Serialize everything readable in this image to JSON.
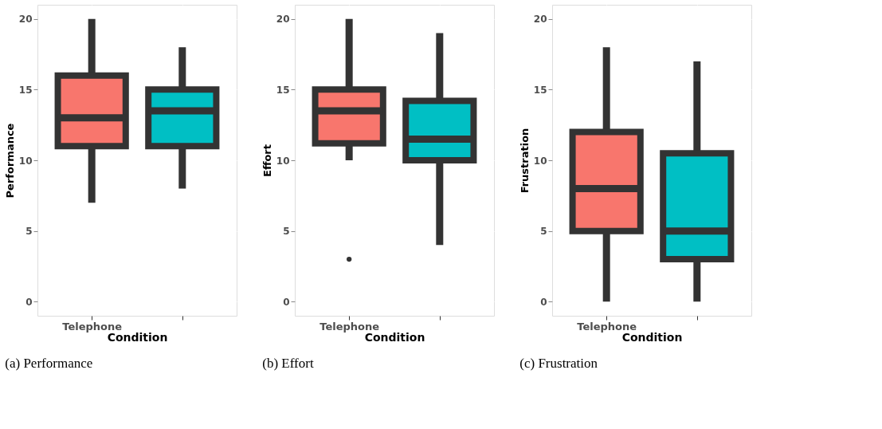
{
  "chart_data": [
    {
      "type": "box",
      "title": "(a) Performance",
      "xlabel": "Condition",
      "ylabel": "Performance",
      "categories": [
        "Telephone",
        null
      ],
      "colors": [
        "#f8766d",
        "#00bfc4"
      ],
      "boxes": [
        {
          "low": 7,
          "q1": 11,
          "median": 13,
          "q3": 16,
          "high": 20
        },
        {
          "low": 8,
          "q1": 11,
          "median": 13.5,
          "q3": 15,
          "high": 18
        }
      ],
      "ylim": [
        -1,
        21
      ],
      "yticks": [
        0,
        5,
        10,
        15,
        20
      ],
      "grid": true
    },
    {
      "type": "box",
      "title": "(b) Effort",
      "xlabel": "Condition",
      "ylabel": "Effort",
      "categories": [
        "Telephone",
        null
      ],
      "colors": [
        "#f8766d",
        "#00bfc4"
      ],
      "boxes": [
        {
          "low": 10,
          "q1": 11.2,
          "median": 13.5,
          "q3": 15,
          "high": 20,
          "outliers": [
            3
          ]
        },
        {
          "low": 4,
          "q1": 10,
          "median": 11.5,
          "q3": 14.2,
          "high": 19
        }
      ],
      "ylim": [
        -1,
        21
      ],
      "yticks": [
        0,
        5,
        10,
        15,
        20
      ],
      "grid": true
    },
    {
      "type": "box",
      "title": "(c) Frustration",
      "xlabel": "Condition",
      "ylabel": "Frustration",
      "categories": [
        "Telephone",
        null
      ],
      "colors": [
        "#f8766d",
        "#00bfc4"
      ],
      "boxes": [
        {
          "low": 0,
          "q1": 5,
          "median": 8,
          "q3": 12,
          "high": 18
        },
        {
          "low": 0,
          "q1": 3,
          "median": 5,
          "q3": 10.5,
          "high": 17
        }
      ],
      "ylim": [
        -1,
        21
      ],
      "yticks": [
        0,
        5,
        10,
        15,
        20
      ],
      "grid": true
    }
  ]
}
